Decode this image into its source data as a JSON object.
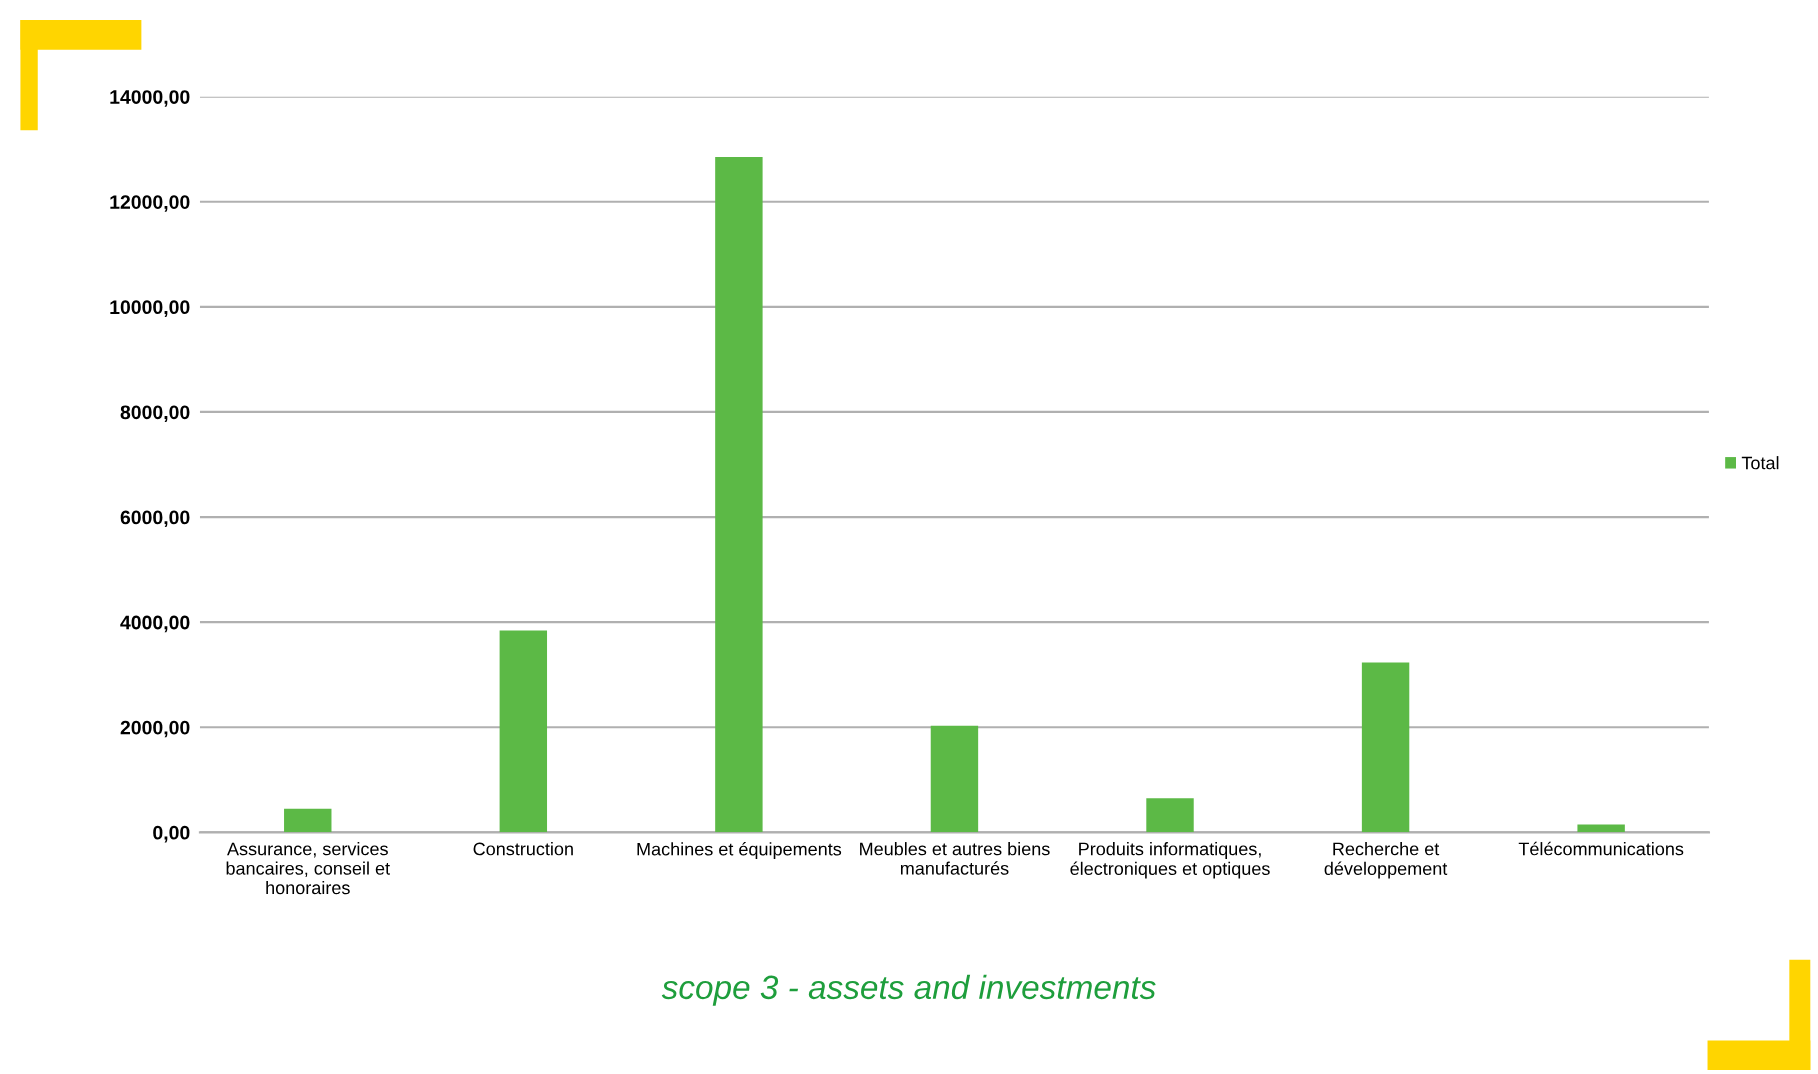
{
  "chart_data": {
    "type": "bar",
    "categories": [
      "Assurance, services\nbancaires, conseil et\nhonoraires",
      "Construction",
      "Machines et équipements",
      "Meubles et autres biens\nmanufacturés",
      "Produits informatiques,\nélectroniques et optiques",
      "Recherche et\ndéveloppement",
      "Télécommunications"
    ],
    "series": [
      {
        "name": "Total",
        "color": "#5cb946",
        "values": [
          450,
          3840,
          12850,
          2030,
          650,
          3230,
          150
        ]
      }
    ],
    "ylim": [
      0,
      14000
    ],
    "yticks": [
      {
        "value": 0,
        "label": "0,00"
      },
      {
        "value": 2000,
        "label": "2000,00"
      },
      {
        "value": 4000,
        "label": "4000,00"
      },
      {
        "value": 6000,
        "label": "6000,00"
      },
      {
        "value": 8000,
        "label": "8000,00"
      },
      {
        "value": 10000,
        "label": "10000,00"
      },
      {
        "value": 12000,
        "label": "12000,00"
      },
      {
        "value": 14000,
        "label": "14000,00"
      }
    ],
    "grid": "y",
    "legend": "right",
    "annotations": [
      "scope 3 - assets and investments"
    ]
  }
}
